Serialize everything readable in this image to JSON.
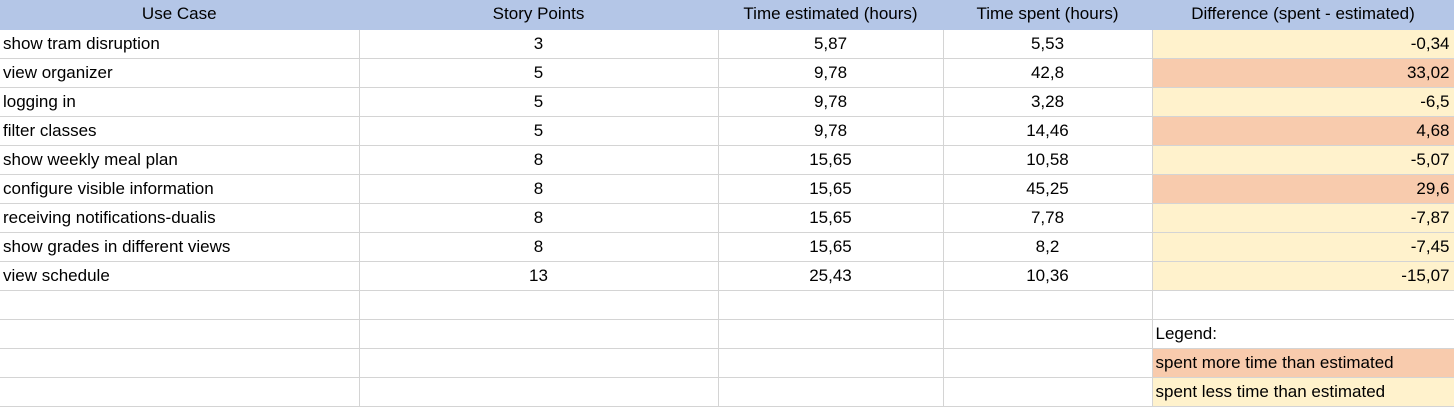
{
  "headers": [
    "Use Case",
    "Story Points",
    "Time estimated (hours)",
    "Time spent (hours)",
    "Difference (spent - estimated)"
  ],
  "rows": [
    {
      "use_case": "show tram disruption",
      "story_points": "3",
      "estimated": "5,87",
      "spent": "5,53",
      "difference": "-0,34",
      "status": "under"
    },
    {
      "use_case": "view organizer",
      "story_points": "5",
      "estimated": "9,78",
      "spent": "42,8",
      "difference": "33,02",
      "status": "over"
    },
    {
      "use_case": "logging in",
      "story_points": "5",
      "estimated": "9,78",
      "spent": "3,28",
      "difference": "-6,5",
      "status": "under"
    },
    {
      "use_case": "filter classes",
      "story_points": "5",
      "estimated": "9,78",
      "spent": "14,46",
      "difference": "4,68",
      "status": "over"
    },
    {
      "use_case": "show weekly meal plan",
      "story_points": "8",
      "estimated": "15,65",
      "spent": "10,58",
      "difference": "-5,07",
      "status": "under"
    },
    {
      "use_case": "configure visible information",
      "story_points": "8",
      "estimated": "15,65",
      "spent": "45,25",
      "difference": "29,6",
      "status": "over"
    },
    {
      "use_case": "receiving notifications-dualis",
      "story_points": "8",
      "estimated": "15,65",
      "spent": "7,78",
      "difference": "-7,87",
      "status": "under"
    },
    {
      "use_case": "show grades in different views",
      "story_points": "8",
      "estimated": "15,65",
      "spent": "8,2",
      "difference": "-7,45",
      "status": "under"
    },
    {
      "use_case": "view schedule",
      "story_points": "13",
      "estimated": "25,43",
      "spent": "10,36",
      "difference": "-15,07",
      "status": "under"
    }
  ],
  "legend": {
    "title": "Legend:",
    "over_label": "spent more time than estimated",
    "under_label": "spent less time than estimated"
  },
  "colors": {
    "header_bg": "#b4c6e7",
    "over_bg": "#f8cbad",
    "under_bg": "#fff2cc"
  }
}
